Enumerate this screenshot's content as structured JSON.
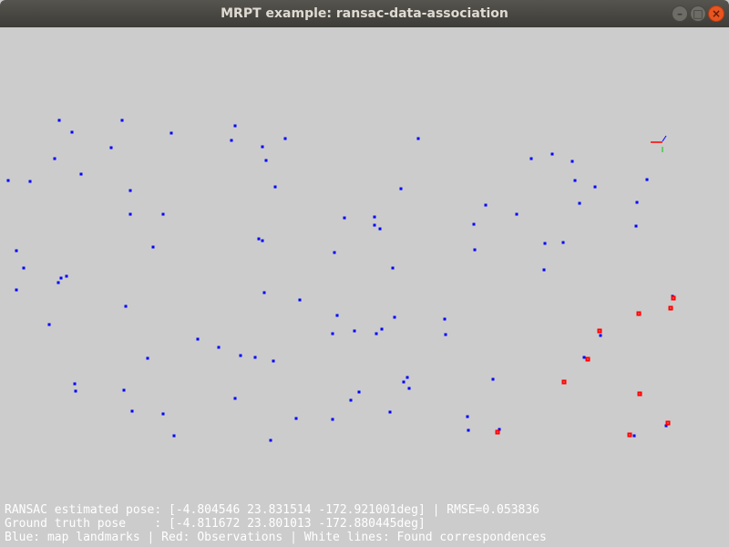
{
  "window": {
    "title": "MRPT example: ransac-data-association",
    "minimize_icon": "minimize-icon",
    "maximize_icon": "maximize-icon",
    "close_icon": "close-icon"
  },
  "colors": {
    "map_landmarks": "#0000ff",
    "observations": "#ff0000",
    "correspondences": "#ffffff",
    "background": "#cccccc"
  },
  "info": {
    "line1": "RANSAC estimated pose: [-4.804546 23.831514 -172.921001deg] | RMSE=0.053836",
    "line2": "Ground truth pose    : [-4.811672 23.801013 -172.880445deg]",
    "line3": "Blue: map landmarks | Red: Observations | White lines: Found correspondences"
  }
}
